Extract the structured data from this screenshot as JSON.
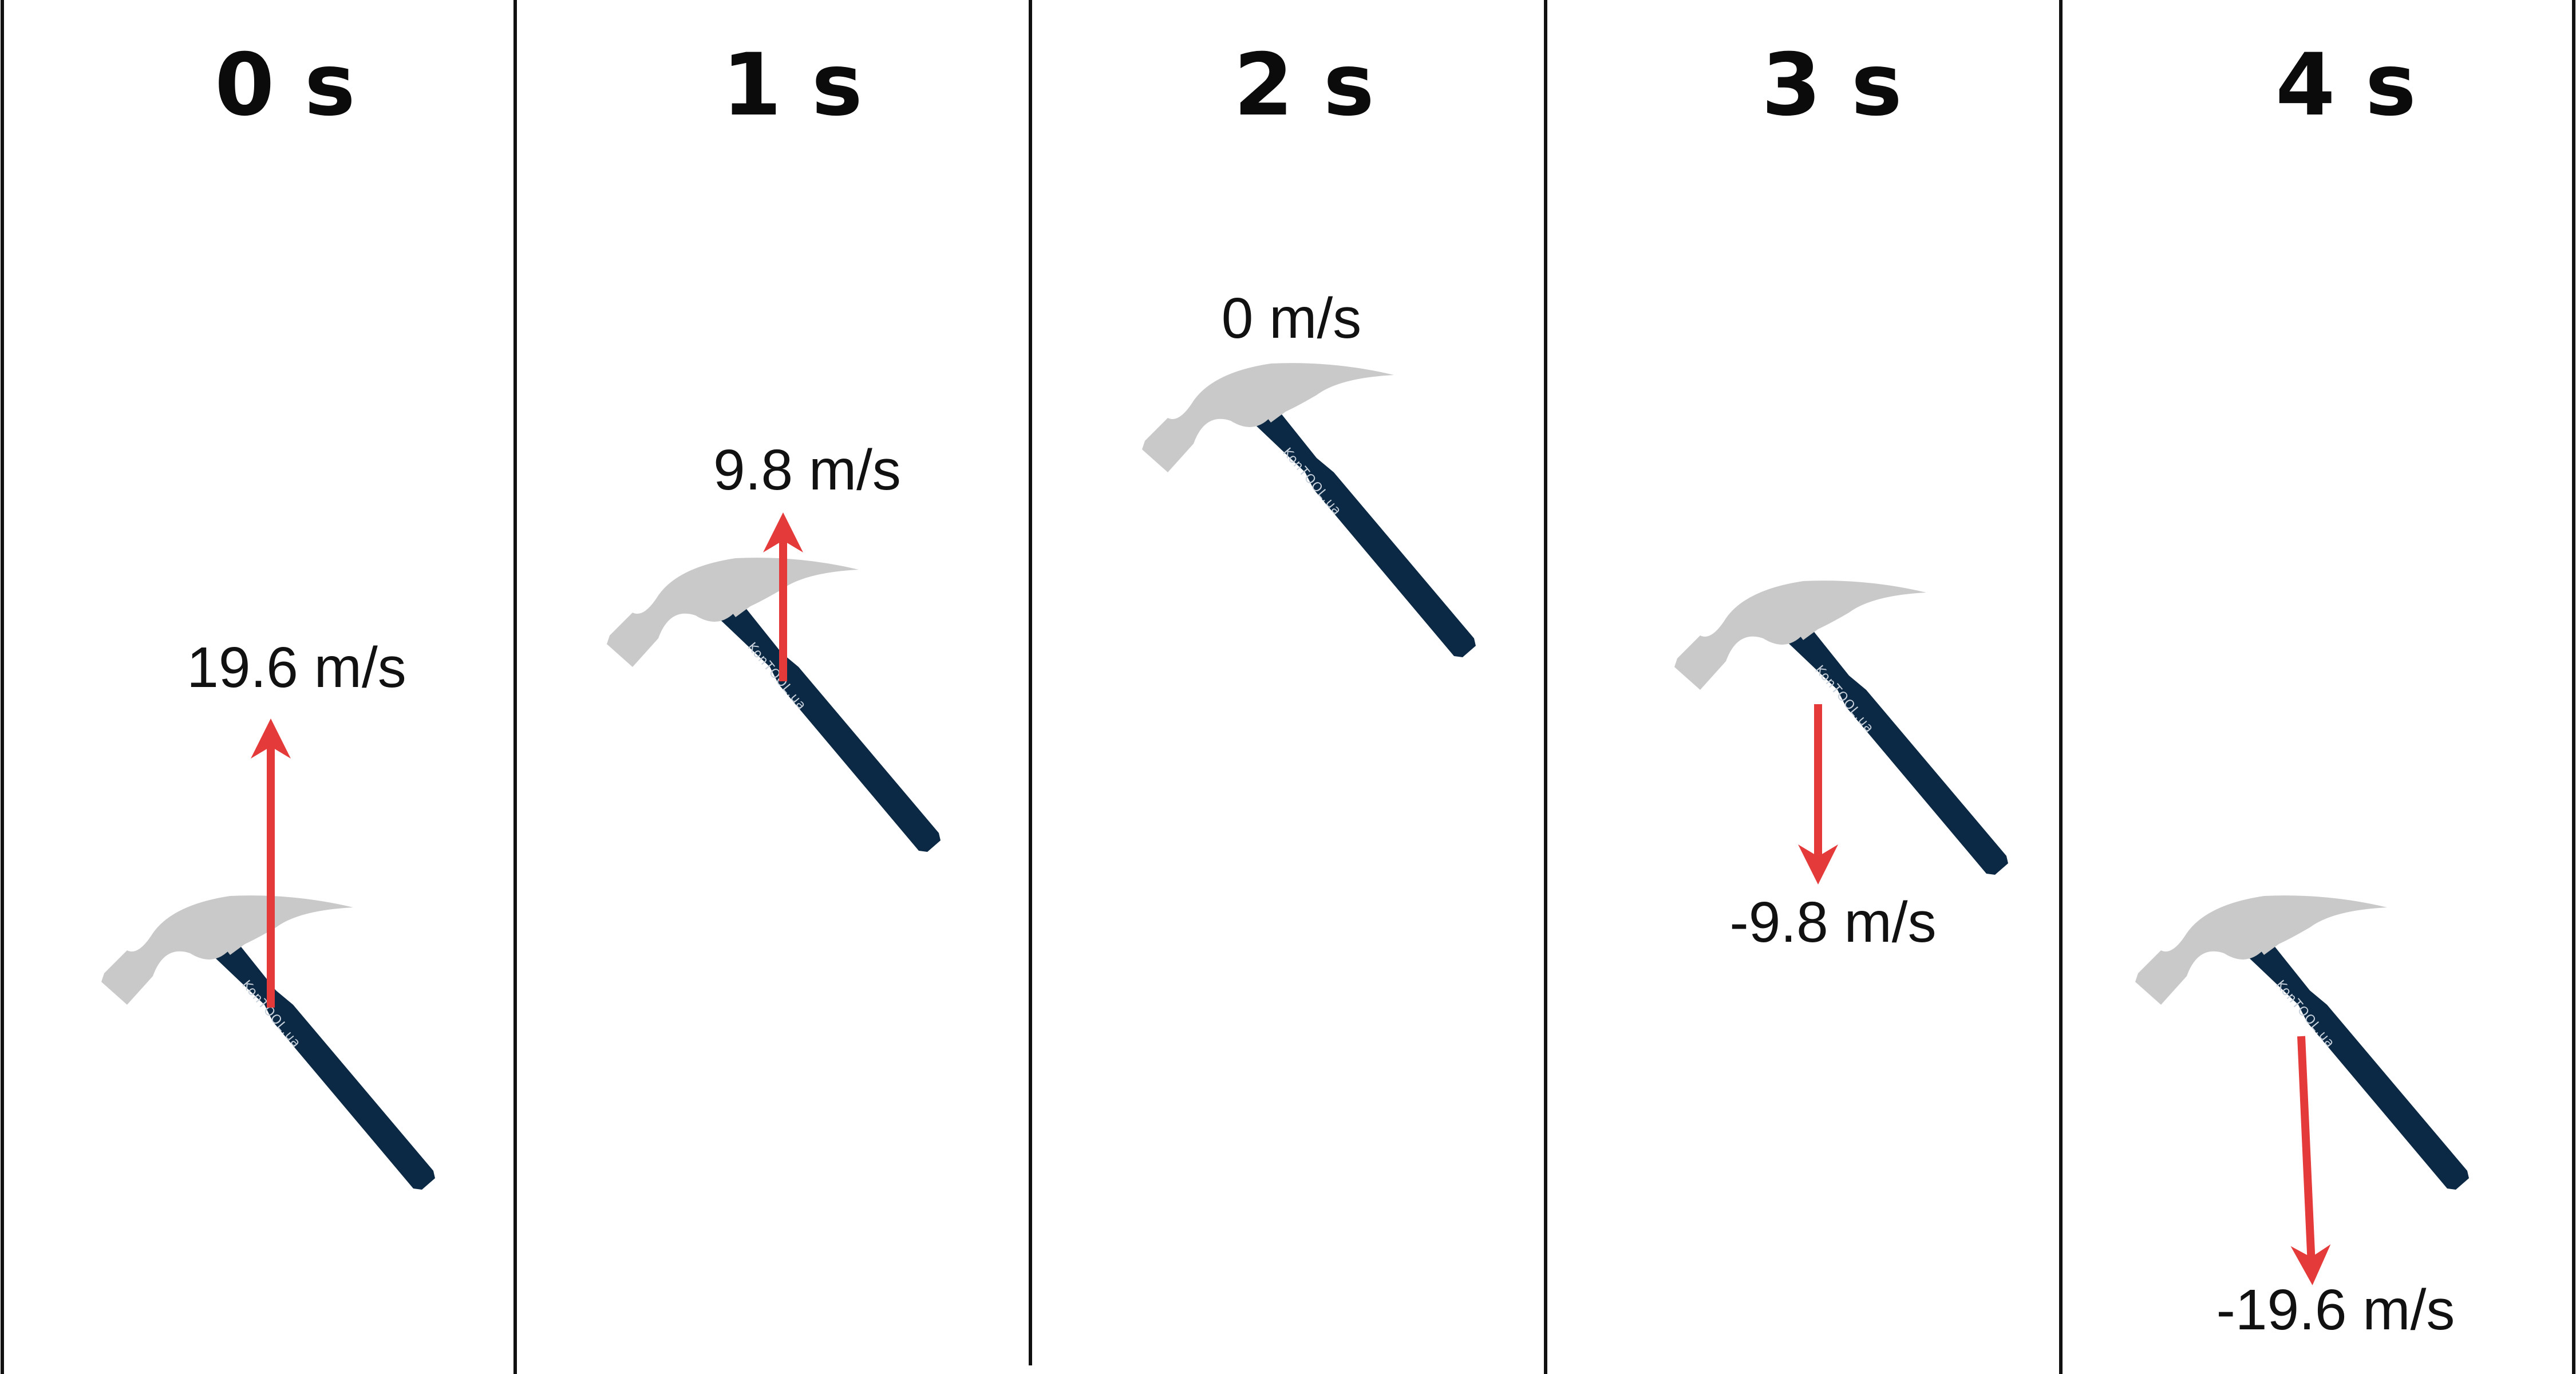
{
  "colors": {
    "divider": "#111111",
    "arrow": "#e53a3a",
    "hammer_head": "#c9c9c9",
    "hammer_handle": "#0b2944"
  },
  "panels": [
    {
      "time_label": "0 s",
      "velocity_label": "19.6 m/s",
      "velocity": 19.6
    },
    {
      "time_label": "1 s",
      "velocity_label": "9.8 m/s",
      "velocity": 9.8
    },
    {
      "time_label": "2 s",
      "velocity_label": "0 m/s",
      "velocity": 0
    },
    {
      "time_label": "3 s",
      "velocity_label": "-9.8 m/s",
      "velocity": -9.8
    },
    {
      "time_label": "4 s",
      "velocity_label": "-19.6 m/s",
      "velocity": -19.6
    }
  ],
  "hammer": {
    "icon": "hammer-icon",
    "brand_text": "KonTOOL.ua"
  }
}
